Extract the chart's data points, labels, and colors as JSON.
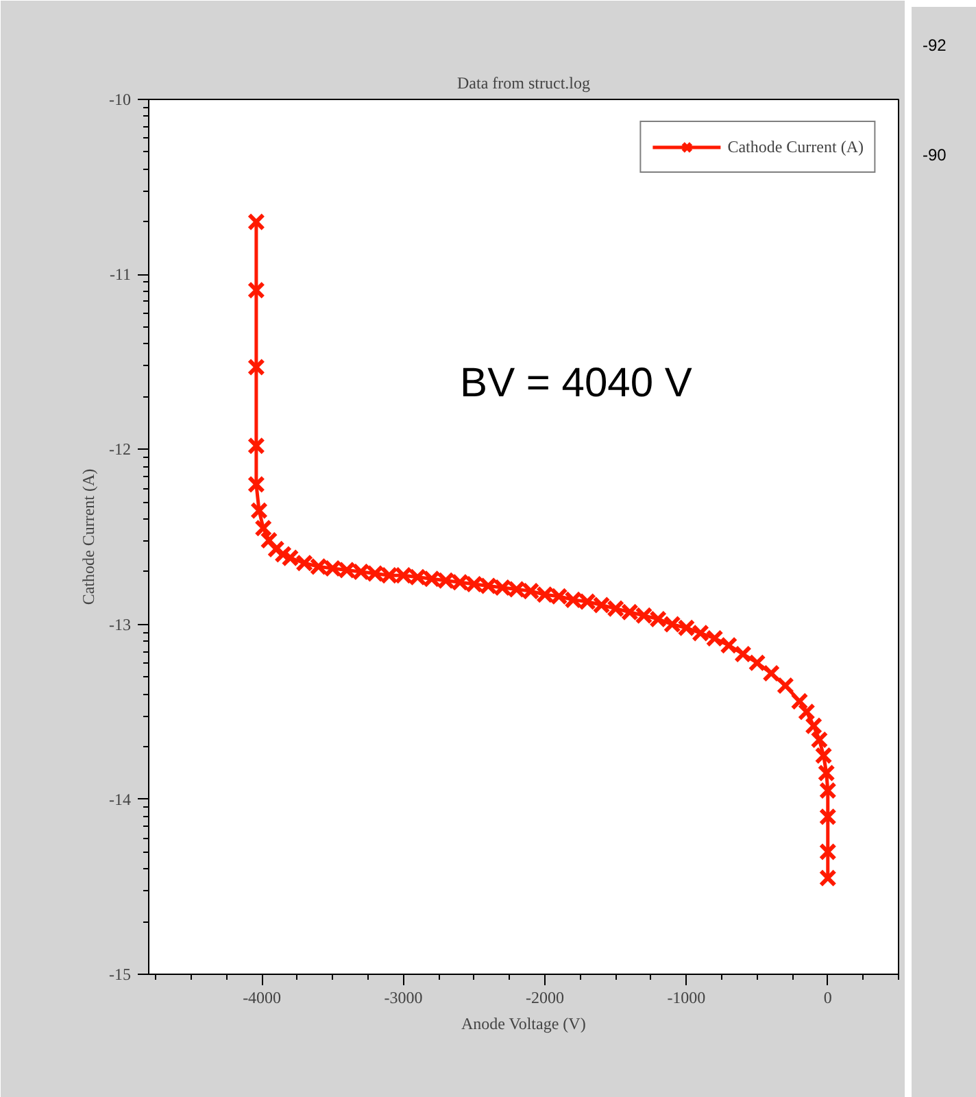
{
  "chart_data": {
    "type": "line",
    "title": "Data from struct.log",
    "xlabel": "Anode Voltage (V)",
    "ylabel": "Cathode Current (A)",
    "annotations": [
      "BV = 4040 V",
      "-92",
      "-90"
    ],
    "xlim": [
      -4800,
      500
    ],
    "xticks": [
      -4000,
      -3000,
      -2000,
      -1000,
      0
    ],
    "ylim": [
      -15,
      -10
    ],
    "yticks": [
      -15,
      -14,
      -13,
      -12,
      -11,
      -10
    ],
    "grid": false,
    "legend": "top right",
    "marker": "cross",
    "line_style": "solid",
    "series": [
      {
        "name": "Cathode Current (A)",
        "color": "#ff1a00",
        "x": [
          -4040,
          -4040,
          -4040,
          -4040,
          -4040,
          -4020,
          -3990,
          -3950,
          -3900,
          -3850,
          -3800,
          -3700,
          -3600,
          -3500,
          -3400,
          -3300,
          -3200,
          -3100,
          -3000,
          -2900,
          -2800,
          -2700,
          -2600,
          -2500,
          -2400,
          -2300,
          -2200,
          -2100,
          -2000,
          -1900,
          -1800,
          -1700,
          -1600,
          -1500,
          -1400,
          -1300,
          -1200,
          -1100,
          -1000,
          -900,
          -800,
          -700,
          -600,
          -500,
          -400,
          -300,
          -200,
          -150,
          -100,
          -60,
          -30,
          -10,
          0,
          0,
          0,
          0
        ],
        "values": [
          -10.7,
          -11.09,
          -11.53,
          -11.98,
          -12.2,
          -12.35,
          -12.45,
          -12.52,
          -12.57,
          -12.6,
          -12.62,
          -12.65,
          -12.67,
          -12.68,
          -12.69,
          -12.7,
          -12.71,
          -12.72,
          -12.72,
          -12.73,
          -12.74,
          -12.75,
          -12.76,
          -12.77,
          -12.78,
          -12.79,
          -12.8,
          -12.81,
          -12.83,
          -12.84,
          -12.86,
          -12.87,
          -12.89,
          -12.91,
          -12.93,
          -12.95,
          -12.97,
          -13.0,
          -13.02,
          -13.05,
          -13.08,
          -13.12,
          -13.17,
          -13.22,
          -13.28,
          -13.35,
          -13.44,
          -13.5,
          -13.58,
          -13.66,
          -13.75,
          -13.85,
          -13.95,
          -14.1,
          -14.3,
          -14.45
        ]
      }
    ]
  }
}
